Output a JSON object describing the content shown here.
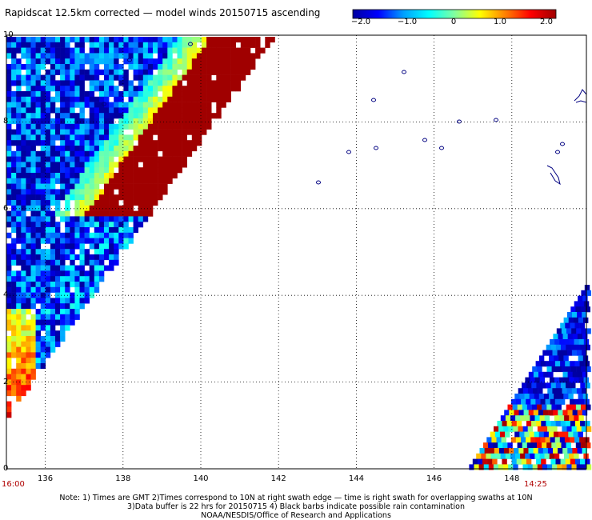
{
  "title": "Rapidscat 12.5km corrected — model winds 20150715 ascending",
  "colorbar": {
    "ticks": [
      "−2.0",
      "−1.0",
      "0",
      "1.0",
      "2.0"
    ],
    "range": [
      -2.0,
      2.0
    ],
    "colors": [
      "#0000a0",
      "#0000ff",
      "#00a0ff",
      "#00ffff",
      "#80ffa0",
      "#ffff00",
      "#ff8000",
      "#ff0000",
      "#a00000"
    ]
  },
  "map": {
    "lon_ticks": [
      "136",
      "138",
      "140",
      "142",
      "144",
      "146",
      "148"
    ],
    "lat_ticks": [
      "0",
      "2",
      "4",
      "6",
      "8",
      "10"
    ],
    "lon_range": [
      135.0,
      149.8
    ],
    "lat_range": [
      0,
      10
    ],
    "grid": "dotted",
    "land_color": "#000080"
  },
  "times": {
    "left": "16:00",
    "right": "14:25"
  },
  "notes": [
    "Note: 1) Times are GMT 2)Times correspond to 10N at right swath edge — time is right swath for overlapping swaths at 10N",
    "3)Data buffer is 22 hrs for 20150715 4) Black barbs indicate possible rain contamination",
    "NOAA/NESDIS/Office of Research and Applications"
  ]
}
